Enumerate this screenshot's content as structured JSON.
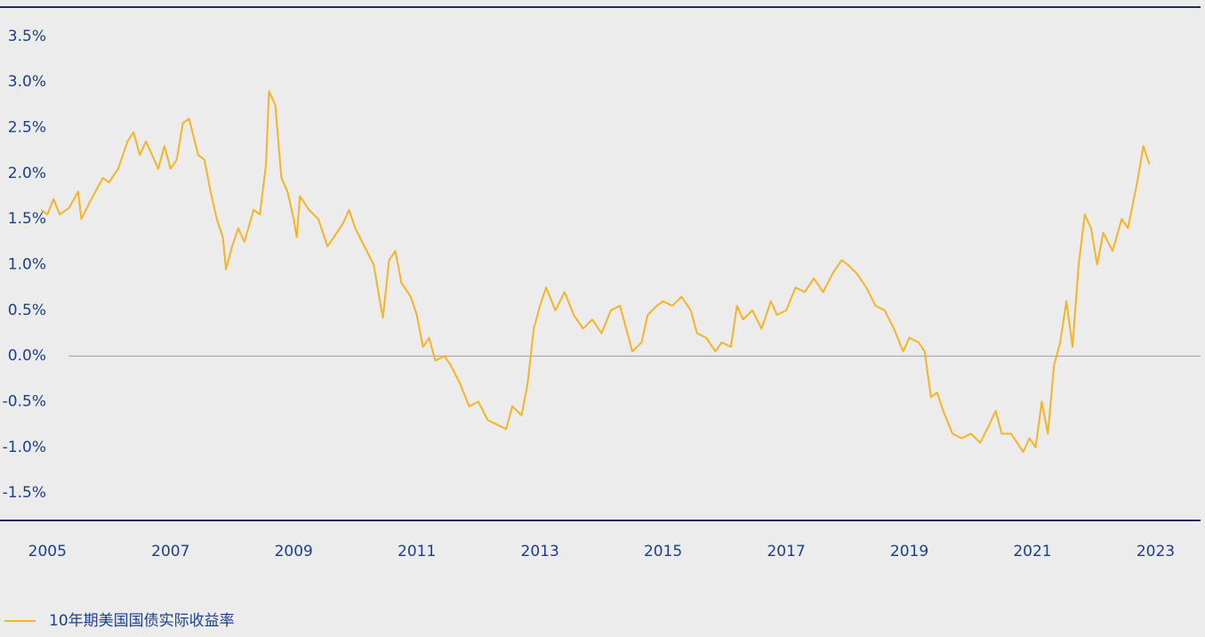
{
  "chart_data": {
    "type": "line",
    "x": [
      2004.9,
      2005.0,
      2005.1,
      2005.2,
      2005.35,
      2005.5,
      2005.55,
      2005.7,
      2005.9,
      2006.0,
      2006.15,
      2006.3,
      2006.4,
      2006.5,
      2006.6,
      2006.8,
      2006.9,
      2007.0,
      2007.1,
      2007.2,
      2007.3,
      2007.45,
      2007.55,
      2007.65,
      2007.75,
      2007.85,
      2007.9,
      2008.0,
      2008.1,
      2008.2,
      2008.35,
      2008.45,
      2008.55,
      2008.6,
      2008.7,
      2008.8,
      2008.9,
      2009.0,
      2009.05,
      2009.1,
      2009.25,
      2009.4,
      2009.55,
      2009.7,
      2009.8,
      2009.9,
      2010.0,
      2010.15,
      2010.3,
      2010.4,
      2010.45,
      2010.55,
      2010.65,
      2010.75,
      2010.9,
      2011.0,
      2011.1,
      2011.2,
      2011.3,
      2011.45,
      2011.55,
      2011.7,
      2011.85,
      2012.0,
      2012.15,
      2012.3,
      2012.45,
      2012.55,
      2012.7,
      2012.8,
      2012.9,
      2013.0,
      2013.1,
      2013.25,
      2013.4,
      2013.55,
      2013.7,
      2013.85,
      2014.0,
      2014.15,
      2014.3,
      2014.4,
      2014.5,
      2014.65,
      2014.75,
      2014.9,
      2015.0,
      2015.15,
      2015.3,
      2015.45,
      2015.55,
      2015.7,
      2015.85,
      2015.95,
      2016.1,
      2016.2,
      2016.3,
      2016.45,
      2016.6,
      2016.75,
      2016.85,
      2017.0,
      2017.15,
      2017.3,
      2017.45,
      2017.6,
      2017.75,
      2017.9,
      2018.0,
      2018.15,
      2018.3,
      2018.45,
      2018.6,
      2018.75,
      2018.9,
      2019.0,
      2019.15,
      2019.25,
      2019.35,
      2019.45,
      2019.55,
      2019.7,
      2019.85,
      2020.0,
      2020.15,
      2020.3,
      2020.4,
      2020.5,
      2020.65,
      2020.75,
      2020.85,
      2020.95,
      2021.05,
      2021.15,
      2021.25,
      2021.35,
      2021.45,
      2021.55,
      2021.65,
      2021.75,
      2021.85,
      2021.95,
      2022.05,
      2022.15,
      2022.3,
      2022.45,
      2022.55,
      2022.7,
      2022.8,
      2022.9
    ],
    "series": [
      {
        "name": "10年期美国国债实际收益率",
        "color": "#f6b425",
        "values": [
          1.6,
          1.55,
          1.72,
          1.55,
          1.62,
          1.8,
          1.5,
          1.7,
          1.95,
          1.9,
          2.05,
          2.35,
          2.45,
          2.2,
          2.35,
          2.05,
          2.3,
          2.05,
          2.15,
          2.55,
          2.6,
          2.2,
          2.15,
          1.8,
          1.5,
          1.3,
          0.95,
          1.2,
          1.4,
          1.25,
          1.6,
          1.55,
          2.1,
          2.9,
          2.75,
          1.95,
          1.8,
          1.5,
          1.3,
          1.75,
          1.6,
          1.5,
          1.2,
          1.35,
          1.45,
          1.6,
          1.4,
          1.2,
          1.0,
          0.6,
          0.42,
          1.05,
          1.15,
          0.8,
          0.65,
          0.45,
          0.1,
          0.2,
          -0.05,
          0.0,
          -0.1,
          -0.3,
          -0.55,
          -0.5,
          -0.7,
          -0.75,
          -0.8,
          -0.55,
          -0.65,
          -0.3,
          0.3,
          0.55,
          0.75,
          0.5,
          0.7,
          0.45,
          0.3,
          0.4,
          0.25,
          0.5,
          0.55,
          0.3,
          0.05,
          0.15,
          0.45,
          0.55,
          0.6,
          0.55,
          0.65,
          0.5,
          0.25,
          0.2,
          0.05,
          0.15,
          0.1,
          0.55,
          0.4,
          0.5,
          0.3,
          0.6,
          0.45,
          0.5,
          0.75,
          0.7,
          0.85,
          0.7,
          0.9,
          1.05,
          1.0,
          0.9,
          0.75,
          0.55,
          0.5,
          0.3,
          0.05,
          0.2,
          0.15,
          0.05,
          -0.45,
          -0.4,
          -0.6,
          -0.85,
          -0.9,
          -0.85,
          -0.95,
          -0.75,
          -0.6,
          -0.85,
          -0.85,
          -0.95,
          -1.05,
          -0.9,
          -1.0,
          -0.5,
          -0.85,
          -0.1,
          0.15,
          0.6,
          0.1,
          1.0,
          1.55,
          1.4,
          1.0,
          1.35,
          1.15,
          1.5,
          1.4,
          1.9,
          2.3,
          2.1
        ]
      }
    ],
    "xlim": [
      2004.23,
      2023.73
    ],
    "xticks": [
      2005,
      2007,
      2009,
      2011,
      2013,
      2015,
      2017,
      2019,
      2021,
      2023
    ],
    "ylim": [
      -1.8,
      3.82
    ],
    "yticks": [
      {
        "value": -1.5,
        "label": "-1.5%"
      },
      {
        "value": -1.0,
        "label": "-1.0%"
      },
      {
        "value": -0.5,
        "label": "-0.5%"
      },
      {
        "value": 0,
        "label": "0.0%"
      },
      {
        "value": 0.5,
        "label": "0.5%"
      },
      {
        "value": 1.0,
        "label": "1.0%"
      },
      {
        "value": 1.5,
        "label": "1.5%"
      },
      {
        "value": 2.0,
        "label": "2.0%"
      },
      {
        "value": 2.5,
        "label": "2.5%"
      },
      {
        "value": 3.0,
        "label": "3.0%"
      },
      {
        "value": 3.5,
        "label": "3.5%"
      }
    ]
  }
}
